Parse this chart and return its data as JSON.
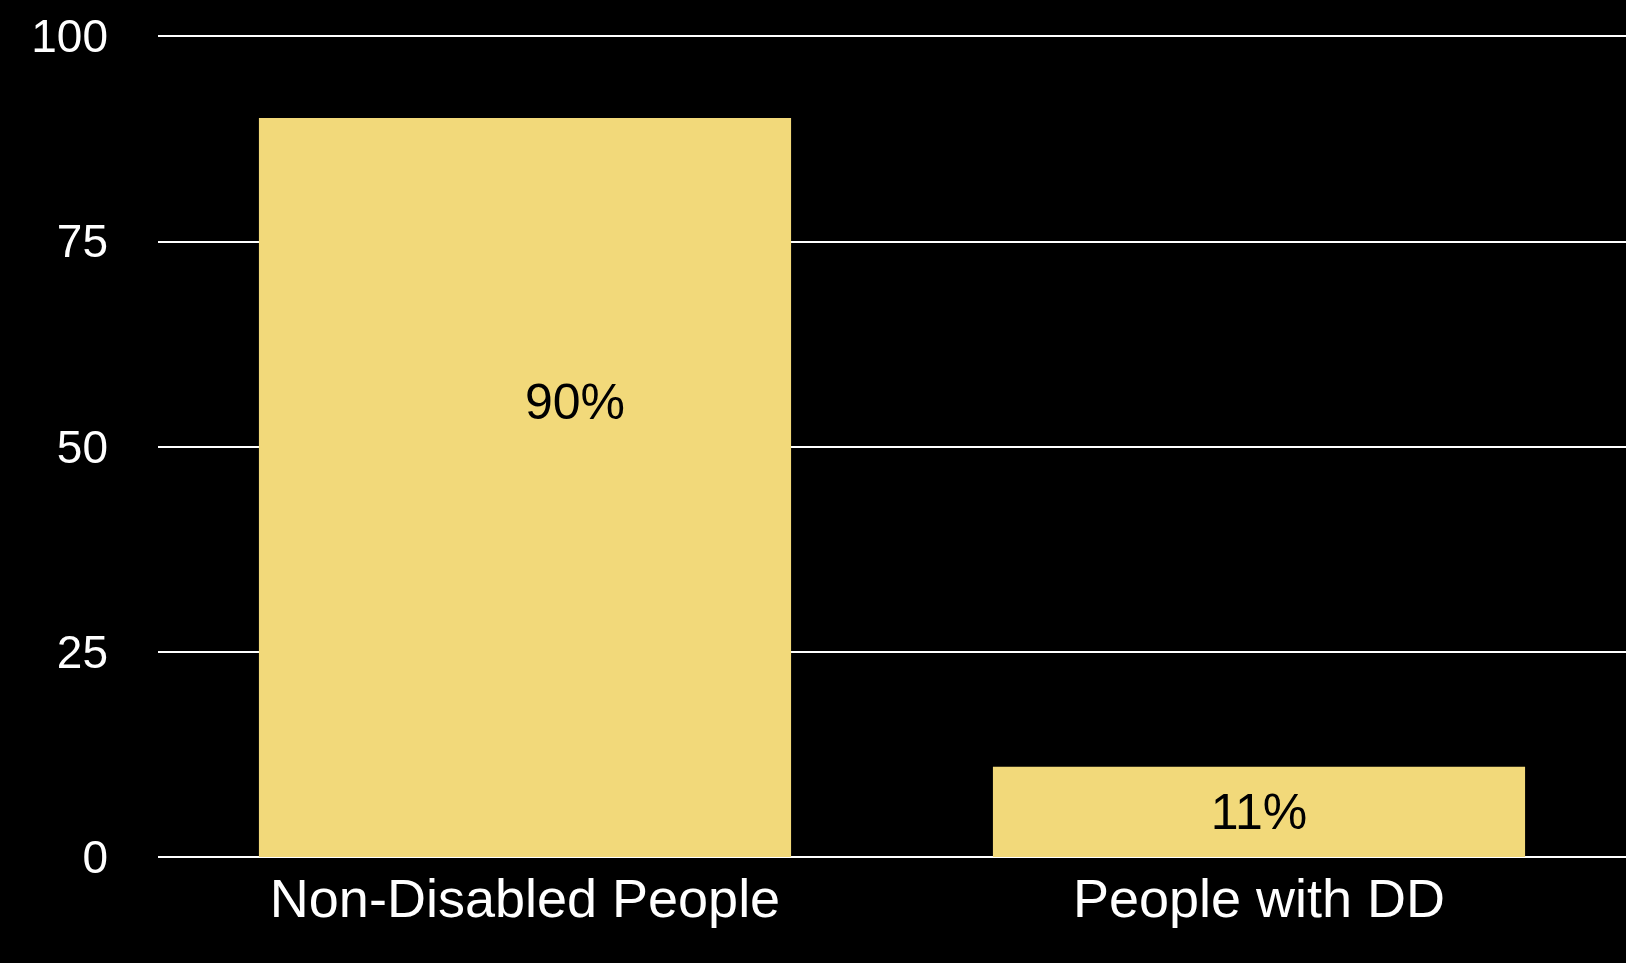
{
  "chart_data": {
    "type": "bar",
    "categories": [
      "Non-Disabled People",
      "People with DD"
    ],
    "values": [
      90,
      11
    ],
    "value_labels": [
      "90%",
      "11%"
    ],
    "color": "#f2d97a",
    "ylim": [
      0,
      100
    ],
    "yticks": [
      0,
      25,
      50,
      75,
      100
    ],
    "grid": "y"
  }
}
